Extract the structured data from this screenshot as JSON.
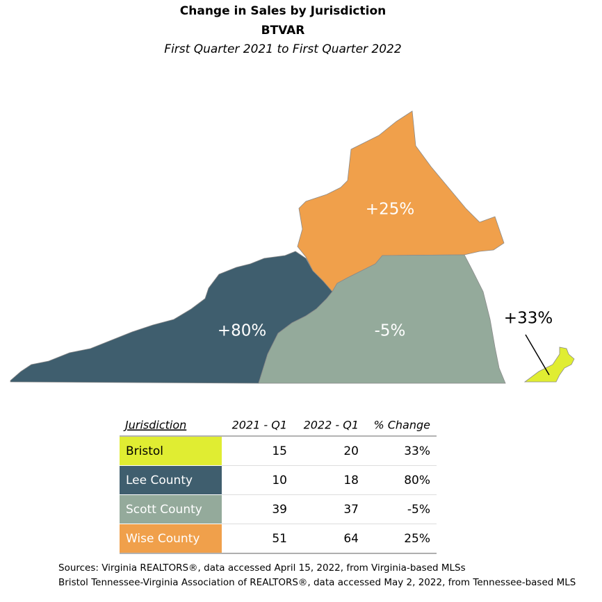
{
  "header": {
    "title": "Change in Sales by Jurisdiction",
    "subtitle": "BTVAR",
    "period": "First Quarter 2021 to First Quarter 2022"
  },
  "map": {
    "labels": {
      "wise": "+25%",
      "lee": "+80%",
      "scott": "-5%",
      "bristol": "+33%"
    }
  },
  "table": {
    "columns": [
      "Jurisdiction",
      "2021 - Q1",
      "2022 - Q1",
      "% Change"
    ],
    "rows": [
      [
        "Bristol",
        "15",
        "20",
        "33%"
      ],
      [
        "Lee County",
        "10",
        "18",
        "80%"
      ],
      [
        "Scott County",
        "39",
        "37",
        "-5%"
      ],
      [
        "Wise County",
        "51",
        "64",
        "25%"
      ]
    ]
  },
  "sources": [
    "Sources: Virginia REALTORS®, data accessed April 15, 2022, from Virginia-based MLSs",
    "Bristol Tennessee-Virginia Association of REALTORS®, data accessed May 2, 2022, from Tennessee-based MLS"
  ]
}
